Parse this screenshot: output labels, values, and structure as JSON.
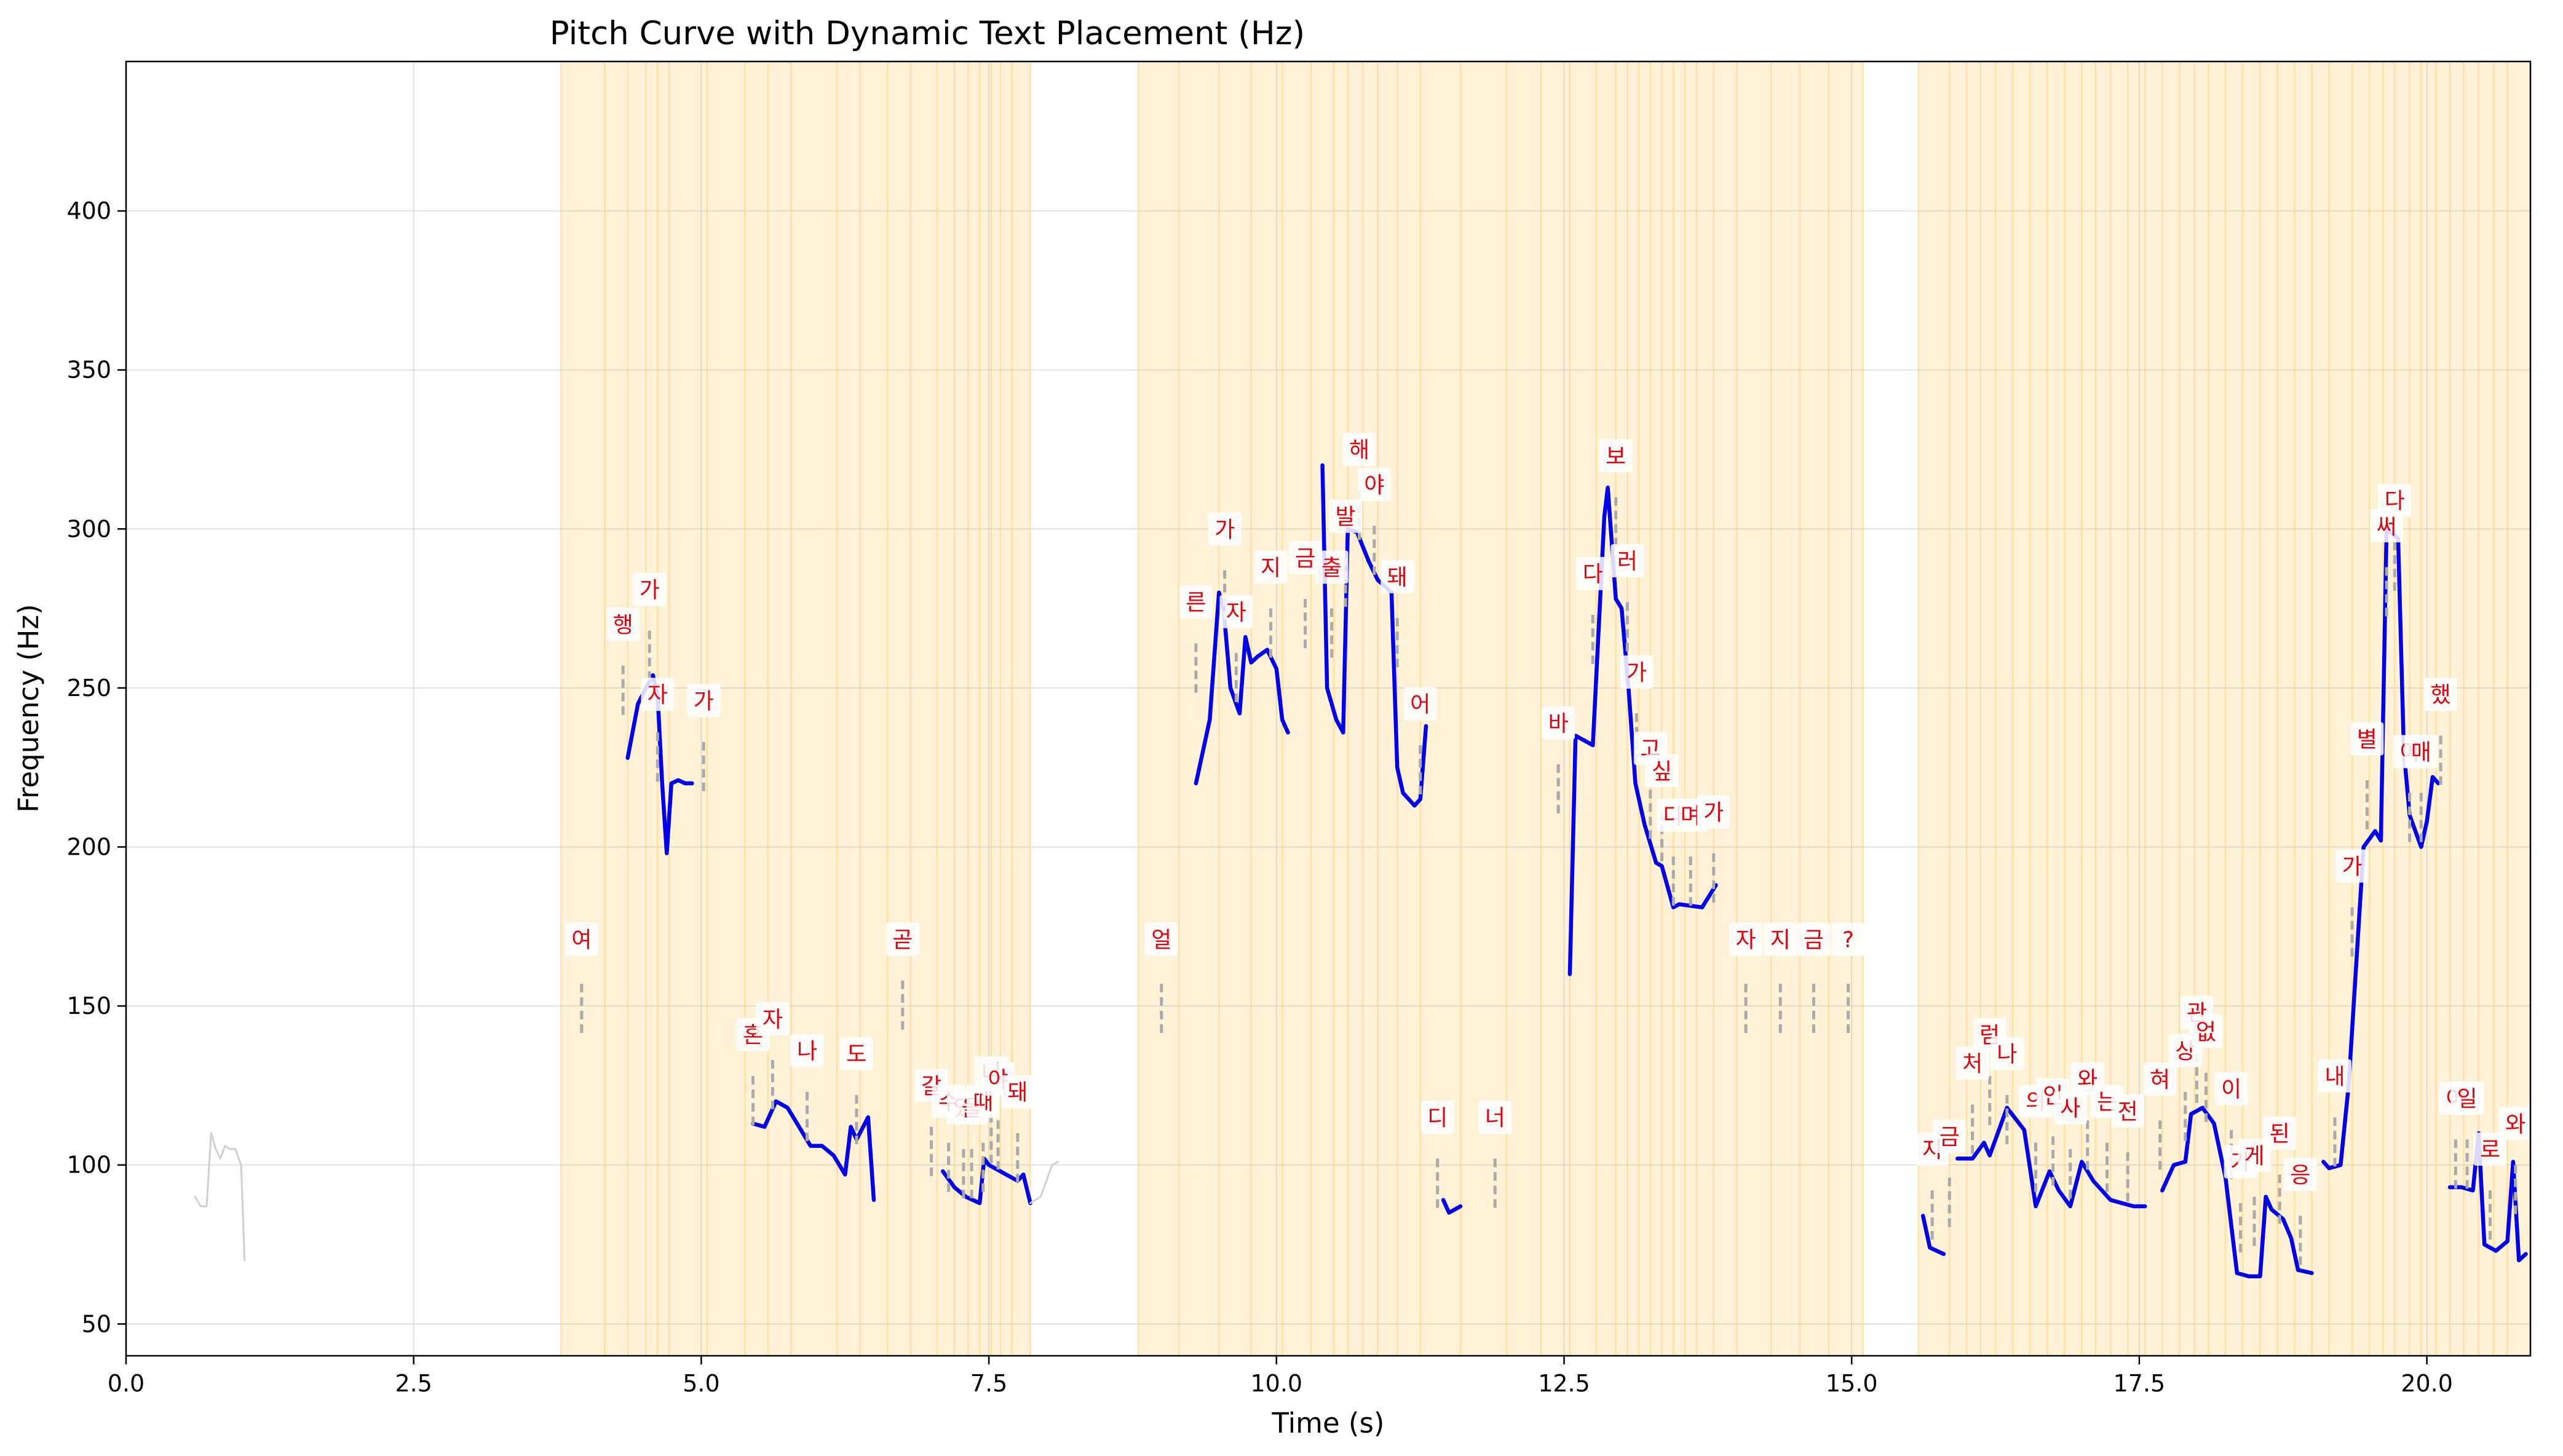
{
  "chart_data": {
    "type": "line",
    "title": "Pitch Curve with Dynamic Text Placement (Hz)",
    "xlabel": "Time (s)",
    "ylabel": "Frequency (Hz)",
    "xlim": [
      0,
      20.9
    ],
    "ylim": [
      40,
      447
    ],
    "xticks": [
      0.0,
      2.5,
      5.0,
      7.5,
      10.0,
      12.5,
      15.0,
      17.5,
      20.0
    ],
    "yticks": [
      50,
      100,
      150,
      200,
      250,
      300,
      350,
      400
    ],
    "grid": true,
    "colors": {
      "pitch": "#0000ee",
      "pitch_faint": "#d0d0d0",
      "highlight": "#ffe7b5",
      "boundary": "#ffc966",
      "label": "#e3000f",
      "connector": "#aaaaaa"
    },
    "highlight_regions": [
      [
        3.78,
        7.86
      ],
      [
        8.8,
        15.1
      ],
      [
        15.58,
        20.9
      ]
    ],
    "boundaries": [
      3.78,
      4.16,
      4.36,
      4.52,
      4.62,
      4.72,
      5.05,
      5.38,
      5.58,
      5.78,
      6.18,
      6.38,
      6.62,
      6.82,
      7.05,
      7.2,
      7.32,
      7.42,
      7.52,
      7.6,
      7.7,
      7.86,
      8.8,
      9.15,
      9.5,
      9.78,
      10.05,
      10.3,
      10.5,
      10.62,
      10.75,
      10.88,
      11.05,
      11.25,
      11.6,
      12.0,
      12.3,
      12.55,
      12.78,
      12.95,
      13.05,
      13.15,
      13.25,
      13.35,
      13.45,
      13.55,
      13.65,
      13.8,
      14.0,
      14.3,
      14.55,
      14.8,
      15.1,
      15.58,
      15.85,
      16.0,
      16.12,
      16.25,
      16.4,
      16.55,
      16.7,
      16.85,
      17.0,
      17.12,
      17.25,
      17.4,
      17.55,
      17.7,
      17.85,
      17.98,
      18.1,
      18.25,
      18.4,
      18.55,
      18.7,
      18.85,
      19.0,
      19.15,
      19.35,
      19.5,
      19.62,
      19.72,
      19.85,
      19.95,
      20.08,
      20.2,
      20.32,
      20.45,
      20.58,
      20.7
    ],
    "series": [
      {
        "style": "faint",
        "x": [
          0.6,
          0.65,
          0.7,
          0.74,
          0.78,
          0.82,
          0.86,
          0.9,
          0.95,
          1.0,
          1.03
        ],
        "y": [
          90,
          87,
          87,
          110,
          105,
          102,
          106,
          105,
          105,
          100,
          70
        ]
      },
      {
        "x": [
          4.36,
          4.45,
          4.52,
          4.58,
          4.62,
          4.66,
          4.7,
          4.74,
          4.8,
          4.86,
          4.92
        ],
        "y": [
          228,
          245,
          250,
          254,
          248,
          220,
          198,
          220,
          221,
          220,
          220
        ]
      },
      {
        "x": [
          5.45,
          5.55,
          5.65,
          5.75,
          5.85,
          5.95,
          6.05,
          6.15,
          6.25,
          6.3,
          6.35,
          6.45,
          6.5
        ],
        "y": [
          113,
          112,
          120,
          118,
          112,
          106,
          106,
          103,
          97,
          112,
          108,
          115,
          89
        ]
      },
      {
        "x": [
          7.1,
          7.2,
          7.3,
          7.42,
          7.46,
          7.5,
          7.6,
          7.7,
          7.75,
          7.8,
          7.86
        ],
        "y": [
          98,
          93,
          90,
          88,
          102,
          100,
          98,
          96,
          95,
          97,
          88
        ]
      },
      {
        "style": "faint",
        "x": [
          7.86,
          7.95,
          8.05,
          8.1
        ],
        "y": [
          88,
          90,
          100,
          101
        ]
      },
      {
        "x": [
          9.3,
          9.42,
          9.5,
          9.54,
          9.6,
          9.68,
          9.73,
          9.78,
          9.84,
          9.92,
          10.0,
          10.05,
          10.1
        ],
        "y": [
          220,
          240,
          280,
          275,
          250,
          242,
          266,
          258,
          260,
          262,
          256,
          240,
          236
        ]
      },
      {
        "x": [
          10.4,
          10.44,
          10.52,
          10.58,
          10.62,
          10.7,
          10.8,
          10.88,
          11.0,
          11.05,
          11.1,
          11.2,
          11.25,
          11.3
        ],
        "y": [
          320,
          250,
          240,
          236,
          300,
          299,
          290,
          284,
          280,
          225,
          217,
          213,
          215,
          238
        ]
      },
      {
        "x": [
          11.45,
          11.5,
          11.6
        ],
        "y": [
          89,
          85,
          87
        ]
      },
      {
        "x": [
          12.55,
          12.6,
          12.75,
          12.85,
          12.88,
          12.95,
          13.0,
          13.06,
          13.12,
          13.2,
          13.3,
          13.35,
          13.45,
          13.5,
          13.7,
          13.82
        ],
        "y": [
          160,
          235,
          232,
          304,
          313,
          278,
          275,
          250,
          220,
          207,
          195,
          194,
          181,
          182,
          181,
          188
        ]
      },
      {
        "x": [
          15.62,
          15.68,
          15.8
        ],
        "y": [
          84,
          74,
          72
        ]
      },
      {
        "x": [
          15.92,
          16.05,
          16.15,
          16.2,
          16.35,
          16.5,
          16.6,
          16.72,
          16.8,
          16.9,
          17.0,
          17.1,
          17.25,
          17.35,
          17.45,
          17.55
        ],
        "y": [
          102,
          102,
          107,
          103,
          118,
          111,
          87,
          98,
          92,
          87,
          101,
          95,
          89,
          88,
          87,
          87
        ]
      },
      {
        "x": [
          17.7,
          17.8,
          17.9,
          17.95,
          18.05,
          18.15,
          18.25,
          18.35,
          18.45,
          18.55,
          18.6,
          18.65,
          18.75,
          18.82,
          18.88,
          19.0
        ],
        "y": [
          92,
          100,
          101,
          116,
          118,
          113,
          96,
          66,
          65,
          65,
          90,
          86,
          83,
          77,
          67,
          66
        ]
      },
      {
        "x": [
          19.1,
          19.15,
          19.25,
          19.32,
          19.45,
          19.55,
          19.6,
          19.65,
          19.75,
          19.8,
          19.85,
          19.95,
          20.0,
          20.05,
          20.1
        ],
        "y": [
          101,
          99,
          100,
          125,
          200,
          205,
          202,
          300,
          297,
          230,
          210,
          200,
          208,
          222,
          220
        ]
      },
      {
        "x": [
          20.2,
          20.3,
          20.4,
          20.45,
          20.5,
          20.6,
          20.7,
          20.75,
          20.8,
          20.86
        ],
        "y": [
          93,
          93,
          92,
          110,
          75,
          73,
          76,
          101,
          70,
          72
        ]
      }
    ],
    "annotations": [
      {
        "text": "여",
        "x": 3.96,
        "y": 171,
        "anchor": 157
      },
      {
        "text": "행",
        "x": 4.32,
        "y": 270,
        "anchor": 257
      },
      {
        "text": "가",
        "x": 4.55,
        "y": 281,
        "anchor": 268
      },
      {
        "text": "자",
        "x": 4.62,
        "y": 248,
        "anchor": 236
      },
      {
        "text": "가",
        "x": 5.02,
        "y": 246,
        "anchor": 233
      },
      {
        "text": "혼",
        "x": 5.45,
        "y": 141,
        "anchor": 128
      },
      {
        "text": "자",
        "x": 5.62,
        "y": 146,
        "anchor": 133
      },
      {
        "text": "나",
        "x": 5.92,
        "y": 136,
        "anchor": 123
      },
      {
        "text": "도",
        "x": 6.35,
        "y": 135,
        "anchor": 122
      },
      {
        "text": "곧",
        "x": 6.75,
        "y": 171,
        "anchor": 158
      },
      {
        "text": "갈",
        "x": 7.0,
        "y": 125,
        "anchor": 112
      },
      {
        "text": "수",
        "x": 7.15,
        "y": 120,
        "anchor": 107
      },
      {
        "text": "있",
        "x": 7.28,
        "y": 118,
        "anchor": 105
      },
      {
        "text": "을",
        "x": 7.35,
        "y": 118,
        "anchor": 105
      },
      {
        "text": "때",
        "x": 7.45,
        "y": 120,
        "anchor": 107
      },
      {
        "text": "니",
        "x": 7.52,
        "y": 129,
        "anchor": 116
      },
      {
        "text": "야",
        "x": 7.58,
        "y": 127,
        "anchor": 114
      },
      {
        "text": "돼",
        "x": 7.75,
        "y": 123,
        "anchor": 110
      },
      {
        "text": "얼",
        "x": 9.0,
        "y": 171,
        "anchor": 157
      },
      {
        "text": "른",
        "x": 9.3,
        "y": 277,
        "anchor": 264
      },
      {
        "text": "가",
        "x": 9.55,
        "y": 300,
        "anchor": 287
      },
      {
        "text": "자",
        "x": 9.65,
        "y": 274,
        "anchor": 261
      },
      {
        "text": "지",
        "x": 9.95,
        "y": 288,
        "anchor": 275
      },
      {
        "text": "금",
        "x": 10.25,
        "y": 291,
        "anchor": 278
      },
      {
        "text": "출",
        "x": 10.48,
        "y": 288,
        "anchor": 275
      },
      {
        "text": "발",
        "x": 10.6,
        "y": 304,
        "anchor": 291
      },
      {
        "text": "해",
        "x": 10.72,
        "y": 325,
        "anchor": 312
      },
      {
        "text": "야",
        "x": 10.85,
        "y": 314,
        "anchor": 301
      },
      {
        "text": "돼",
        "x": 11.05,
        "y": 285,
        "anchor": 272
      },
      {
        "text": "어",
        "x": 11.25,
        "y": 245,
        "anchor": 232
      },
      {
        "text": "디",
        "x": 11.4,
        "y": 115,
        "anchor": 102
      },
      {
        "text": "너",
        "x": 11.9,
        "y": 115,
        "anchor": 102
      },
      {
        "text": "바",
        "x": 12.45,
        "y": 239,
        "anchor": 226
      },
      {
        "text": "다",
        "x": 12.75,
        "y": 286,
        "anchor": 273
      },
      {
        "text": "보",
        "x": 12.95,
        "y": 323,
        "anchor": 310
      },
      {
        "text": "러",
        "x": 13.05,
        "y": 290,
        "anchor": 277
      },
      {
        "text": "가",
        "x": 13.13,
        "y": 255,
        "anchor": 242
      },
      {
        "text": "고",
        "x": 13.25,
        "y": 231,
        "anchor": 218
      },
      {
        "text": "싶",
        "x": 13.35,
        "y": 224,
        "anchor": 211
      },
      {
        "text": "다",
        "x": 13.45,
        "y": 210,
        "anchor": 197
      },
      {
        "text": "며",
        "x": 13.6,
        "y": 210,
        "anchor": 197
      },
      {
        "text": "가",
        "x": 13.8,
        "y": 211,
        "anchor": 198
      },
      {
        "text": "자",
        "x": 14.08,
        "y": 171,
        "anchor": 157
      },
      {
        "text": "지",
        "x": 14.38,
        "y": 171,
        "anchor": 157
      },
      {
        "text": "금",
        "x": 14.67,
        "y": 171,
        "anchor": 157
      },
      {
        "text": "?",
        "x": 14.97,
        "y": 171,
        "anchor": 157
      },
      {
        "text": "지",
        "x": 15.7,
        "y": 105,
        "anchor": 92
      },
      {
        "text": "금",
        "x": 15.85,
        "y": 109,
        "anchor": 96
      },
      {
        "text": "처",
        "x": 16.05,
        "y": 132,
        "anchor": 119
      },
      {
        "text": "럼",
        "x": 16.2,
        "y": 141,
        "anchor": 128
      },
      {
        "text": "나",
        "x": 16.35,
        "y": 135,
        "anchor": 122
      },
      {
        "text": "의",
        "x": 16.6,
        "y": 120,
        "anchor": 107
      },
      {
        "text": "인",
        "x": 16.75,
        "y": 122,
        "anchor": 109
      },
      {
        "text": "사",
        "x": 16.9,
        "y": 118,
        "anchor": 105
      },
      {
        "text": "와",
        "x": 17.05,
        "y": 127,
        "anchor": 114
      },
      {
        "text": "는",
        "x": 17.22,
        "y": 120,
        "anchor": 107
      },
      {
        "text": "전",
        "x": 17.4,
        "y": 117,
        "anchor": 104
      },
      {
        "text": "혀",
        "x": 17.68,
        "y": 127,
        "anchor": 114
      },
      {
        "text": "상",
        "x": 17.9,
        "y": 136,
        "anchor": 123
      },
      {
        "text": "관",
        "x": 18.0,
        "y": 148,
        "anchor": 135
      },
      {
        "text": "없",
        "x": 18.08,
        "y": 142,
        "anchor": 129
      },
      {
        "text": "이",
        "x": 18.3,
        "y": 124,
        "anchor": 111
      },
      {
        "text": "가",
        "x": 18.38,
        "y": 101,
        "anchor": 88
      },
      {
        "text": "게",
        "x": 18.5,
        "y": 103,
        "anchor": 90
      },
      {
        "text": "된",
        "x": 18.72,
        "y": 110,
        "anchor": 97
      },
      {
        "text": "응",
        "x": 18.9,
        "y": 97,
        "anchor": 84
      },
      {
        "text": "내",
        "x": 19.2,
        "y": 128,
        "anchor": 115
      },
      {
        "text": "가",
        "x": 19.35,
        "y": 194,
        "anchor": 181
      },
      {
        "text": "별",
        "x": 19.48,
        "y": 234,
        "anchor": 221
      },
      {
        "text": "써",
        "x": 19.65,
        "y": 301,
        "anchor": 288
      },
      {
        "text": "다",
        "x": 19.72,
        "y": 309,
        "anchor": 296
      },
      {
        "text": "이",
        "x": 19.85,
        "y": 230,
        "anchor": 217
      },
      {
        "text": "매",
        "x": 19.95,
        "y": 230,
        "anchor": 217
      },
      {
        "text": "했",
        "x": 20.12,
        "y": 248,
        "anchor": 235
      },
      {
        "text": "이",
        "x": 20.25,
        "y": 121,
        "anchor": 108
      },
      {
        "text": "일",
        "x": 20.35,
        "y": 121,
        "anchor": 108
      },
      {
        "text": "로",
        "x": 20.55,
        "y": 105,
        "anchor": 92
      },
      {
        "text": "와",
        "x": 20.77,
        "y": 113,
        "anchor": 100
      }
    ]
  }
}
